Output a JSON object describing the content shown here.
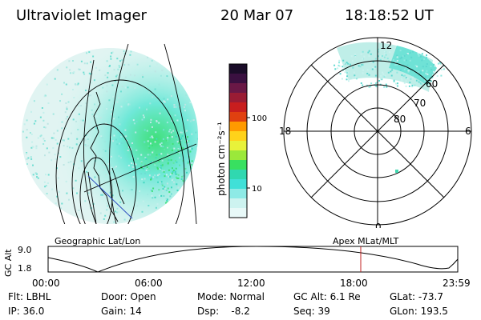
{
  "header": {
    "title": "Ultraviolet Imager",
    "date": "20 Mar 07",
    "time": "18:18:52 UT"
  },
  "left_panel": {
    "caption": "Geographic Lat/Lon"
  },
  "colorbar": {
    "unit_label": "photon cm⁻²s⁻¹",
    "ticks": [
      "100",
      "10"
    ],
    "colors": [
      "#1a0c28",
      "#3a1040",
      "#6a1846",
      "#9a1c34",
      "#c81e1e",
      "#e04010",
      "#ff9a00",
      "#ffd21a",
      "#e8f23a",
      "#9be83a",
      "#38e060",
      "#30d8b0",
      "#40e0d8",
      "#8eeae6",
      "#cdf3f0",
      "#e8f9f8"
    ]
  },
  "polar_panel": {
    "caption": "Apex MLat/MLT",
    "lat_labels": [
      "60",
      "70",
      "80"
    ],
    "mlt_labels": {
      "top": "12",
      "left": "18",
      "right": "6",
      "bottom": "0"
    }
  },
  "altitude_plot": {
    "ylabel": "GC Alt",
    "y_ticks": [
      "9.0",
      "1.8"
    ],
    "x_ticks": [
      "00:00",
      "06:00",
      "12:00",
      "18:00",
      "23:59"
    ],
    "current_marker_hours": 18.3
  },
  "info": {
    "row1": {
      "flt": "Flt: LBHL",
      "door": "Door: Open",
      "mode": "Mode: Normal",
      "gcalt": "GC Alt: 6.1 Re",
      "glat": "GLat: -73.7"
    },
    "row2": {
      "ip": "IP: 36.0",
      "gain": "Gain: 14",
      "dsp": "Dsp:    -8.2",
      "seq": "Seq: 39",
      "glon": "GLon: 193.5"
    }
  },
  "colors": {
    "marker": "#c02020",
    "coast": "#000000",
    "glow": "#40e0d8"
  }
}
